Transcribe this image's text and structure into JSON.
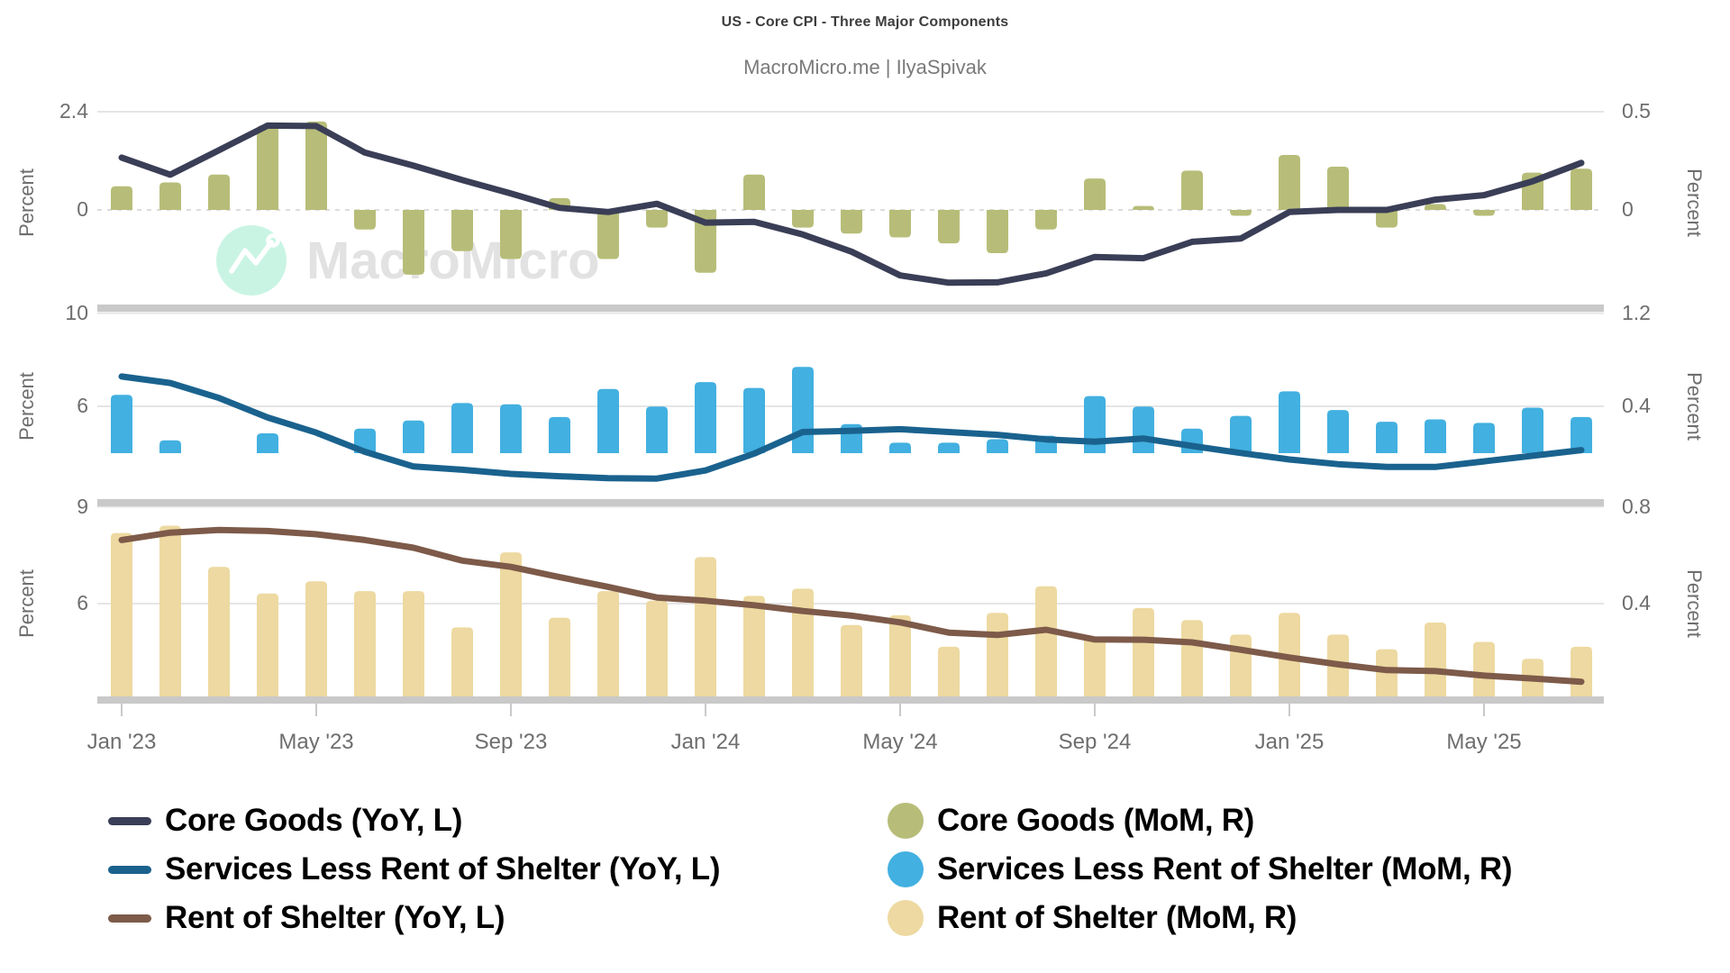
{
  "chart": {
    "title": "US - Core CPI - Three Major Components",
    "subtitle": "MacroMicro.me | IlyaSpivak",
    "watermark": {
      "brand": "MacroMicro",
      "circle_color": "#c9f4e4",
      "glyph_color": "#ffffff",
      "text_color": "#e2e2e2"
    }
  },
  "colors": {
    "core_goods_line": "#3a3e56",
    "core_goods_bar": "#b7bd78",
    "services_line": "#1a628e",
    "services_bar": "#42b0e0",
    "shelter_line": "#7d5a49",
    "shelter_bar": "#edd9a1",
    "separator_band": "#c9c9c9",
    "gridline": "#e5e5e5",
    "zero_line": "#dcdcdc",
    "tick_text": "#6e6e6e"
  },
  "x_axis": {
    "tick_labels": [
      "Jan '23",
      "May '23",
      "Sep '23",
      "Jan '24",
      "May '24",
      "Sep '24",
      "Jan '25",
      "May '25"
    ],
    "tick_month_indices": [
      0,
      4,
      8,
      12,
      16,
      20,
      24,
      28
    ]
  },
  "chart_data": {
    "type": "line+bar (3 stacked panels, dual axes)",
    "months": [
      "Jan '23",
      "Feb '23",
      "Mar '23",
      "Apr '23",
      "May '23",
      "Jun '23",
      "Jul '23",
      "Aug '23",
      "Sep '23",
      "Oct '23",
      "Nov '23",
      "Dec '23",
      "Jan '24",
      "Feb '24",
      "Mar '24",
      "Apr '24",
      "May '24",
      "Jun '24",
      "Jul '24",
      "Aug '24",
      "Sep '24",
      "Oct '24",
      "Nov '24",
      "Dec '24",
      "Jan '25",
      "Feb '25",
      "Mar '25",
      "Apr '25",
      "May '25",
      "Jun '25",
      "Jul '25"
    ],
    "panels": [
      {
        "name": "Core Goods",
        "line": {
          "label": "Core Goods (YoY, L)",
          "axis": "left",
          "color": "#3a3e56",
          "values": [
            1.28,
            0.86,
            1.46,
            2.06,
            2.05,
            1.4,
            1.08,
            0.73,
            0.4,
            0.05,
            -0.05,
            0.15,
            -0.31,
            -0.29,
            -0.6,
            -1.02,
            -1.6,
            -1.78,
            -1.77,
            -1.55,
            -1.15,
            -1.18,
            -0.78,
            -0.7,
            -0.05,
            0.0,
            0.0,
            0.25,
            0.36,
            0.7,
            1.15
          ]
        },
        "bars": {
          "label": "Core Goods (MoM, R)",
          "axis": "right",
          "color": "#b7bd78",
          "values": [
            0.12,
            0.14,
            0.18,
            0.43,
            0.45,
            -0.1,
            -0.33,
            -0.21,
            -0.25,
            0.06,
            -0.25,
            -0.09,
            -0.32,
            0.18,
            -0.09,
            -0.12,
            -0.14,
            -0.17,
            -0.22,
            -0.1,
            0.16,
            0.02,
            0.2,
            -0.03,
            0.28,
            0.22,
            -0.09,
            0.03,
            -0.03,
            0.19,
            0.21
          ]
        },
        "left_axis": {
          "title": "Percent",
          "ticks": [
            {
              "label": "2.4",
              "value": 2.4
            },
            {
              "label": "0",
              "value": 0
            }
          ],
          "range": [
            -2.4,
            2.4
          ]
        },
        "right_axis": {
          "title": "Percent",
          "ticks": [
            {
              "label": "0.5",
              "value": 0.5
            },
            {
              "label": "0",
              "value": 0
            }
          ],
          "range": [
            -0.5,
            0.5
          ]
        }
      },
      {
        "name": "Services Less Rent of Shelter",
        "line": {
          "label": "Services Less Rent of Shelter (YoY, L)",
          "axis": "left",
          "color": "#1a628e",
          "values": [
            7.28,
            7.0,
            6.36,
            5.52,
            4.87,
            4.05,
            3.42,
            3.28,
            3.1,
            3.0,
            2.92,
            2.9,
            3.25,
            3.97,
            4.9,
            4.95,
            5.02,
            4.9,
            4.78,
            4.58,
            4.48,
            4.62,
            4.3,
            4.0,
            3.72,
            3.52,
            3.4,
            3.4,
            3.64,
            3.88,
            4.12
          ]
        },
        "bars": {
          "label": "Services Less Rent of Shelter (MoM, R)",
          "axis": "right",
          "color": "#42b0e0",
          "values": [
            0.5,
            0.11,
            0,
            0.17,
            0,
            0.21,
            0.28,
            0.43,
            0.42,
            0.31,
            0.55,
            0.4,
            0.61,
            0.56,
            0.74,
            0.25,
            0.09,
            0.09,
            0.12,
            0.15,
            0.49,
            0.4,
            0.21,
            0.32,
            0.53,
            0.37,
            0.27,
            0.29,
            0.26,
            0.39,
            0.31
          ]
        },
        "left_axis": {
          "title": "Percent",
          "ticks": [
            {
              "label": "10",
              "value": 10
            },
            {
              "label": "6",
              "value": 6
            }
          ],
          "range": [
            2,
            10
          ]
        },
        "right_axis": {
          "title": "Percent",
          "ticks": [
            {
              "label": "1.2",
              "value": 1.2
            },
            {
              "label": "0.4",
              "value": 0.4
            }
          ],
          "range": [
            -0.4,
            1.2
          ]
        }
      },
      {
        "name": "Rent of Shelter",
        "line": {
          "label": "Rent of Shelter (YoY, L)",
          "axis": "left",
          "color": "#7d5a49",
          "values": [
            7.97,
            8.2,
            8.28,
            8.25,
            8.15,
            7.97,
            7.73,
            7.33,
            7.14,
            6.82,
            6.52,
            6.19,
            6.09,
            5.95,
            5.77,
            5.63,
            5.42,
            5.1,
            5.03,
            5.19,
            4.89,
            4.88,
            4.8,
            4.57,
            4.33,
            4.12,
            3.94,
            3.91,
            3.77,
            3.68,
            3.58
          ]
        },
        "bars": {
          "label": "Rent of Shelter (MoM, R)",
          "axis": "right",
          "color": "#edd9a1",
          "values": [
            0.69,
            0.72,
            0.55,
            0.44,
            0.49,
            0.45,
            0.45,
            0.3,
            0.61,
            0.34,
            0.45,
            0.41,
            0.59,
            0.43,
            0.46,
            0.31,
            0.35,
            0.22,
            0.36,
            0.47,
            0.26,
            0.38,
            0.33,
            0.27,
            0.36,
            0.27,
            0.21,
            0.32,
            0.24,
            0.17,
            0.22
          ]
        },
        "left_axis": {
          "title": "Percent",
          "ticks": [
            {
              "label": "9",
              "value": 9
            },
            {
              "label": "6",
              "value": 6
            }
          ],
          "range": [
            3,
            9
          ]
        },
        "right_axis": {
          "title": "Percent",
          "ticks": [
            {
              "label": "0.8",
              "value": 0.8
            },
            {
              "label": "0.4",
              "value": 0.4
            }
          ],
          "range": [
            0,
            0.8
          ]
        }
      }
    ]
  },
  "legend": {
    "rows": [
      {
        "left": {
          "label": "Core Goods (YoY, L)",
          "swatch": "line",
          "color": "#3a3e56"
        },
        "right": {
          "label": "Core Goods (MoM, R)",
          "swatch": "circle",
          "color": "#b7bd78"
        }
      },
      {
        "left": {
          "label": "Services Less Rent of Shelter (YoY, L)",
          "swatch": "line",
          "color": "#1a628e"
        },
        "right": {
          "label": "Services Less Rent of Shelter (MoM, R)",
          "swatch": "circle",
          "color": "#42b0e0"
        }
      },
      {
        "left": {
          "label": "Rent of Shelter (YoY, L)",
          "swatch": "line",
          "color": "#7d5a49"
        },
        "right": {
          "label": "Rent of Shelter (MoM, R)",
          "swatch": "circle",
          "color": "#edd9a1"
        }
      }
    ]
  }
}
